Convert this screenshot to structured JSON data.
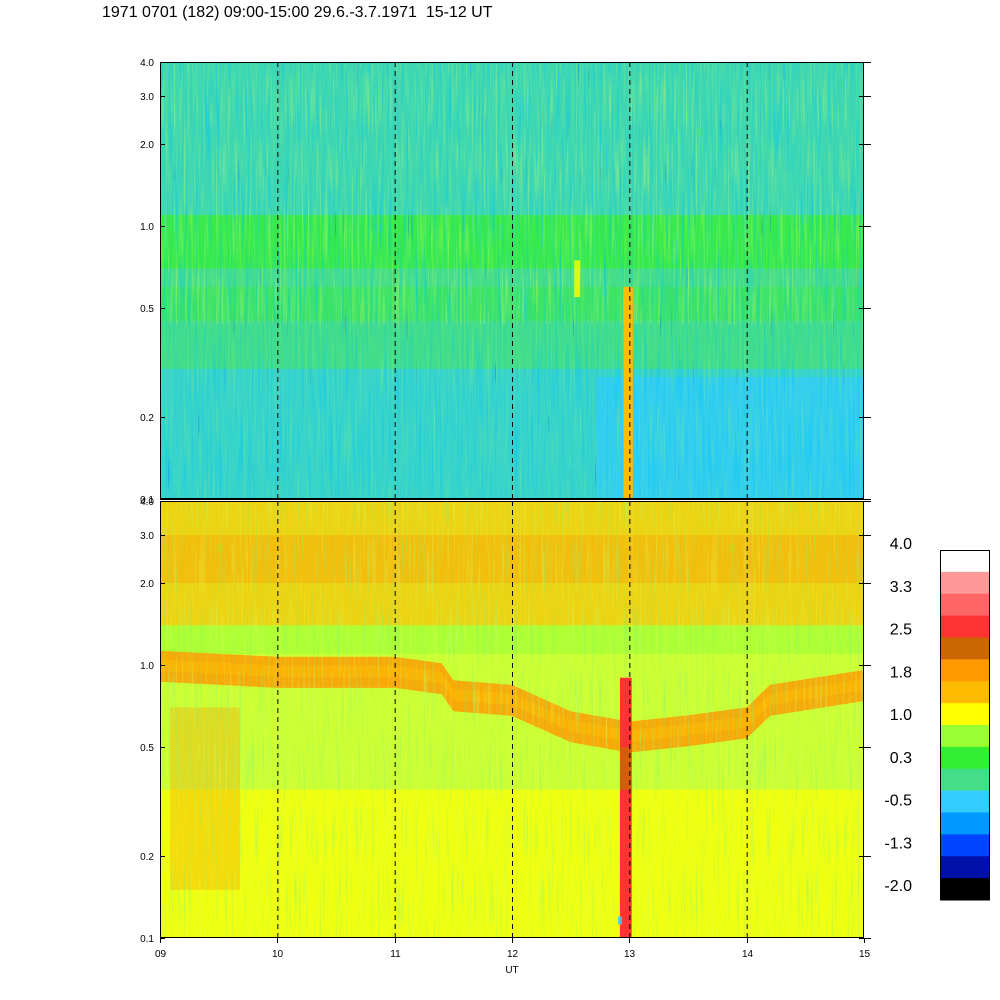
{
  "title": "1971 0701 (182) 09:00-15:00 29.6.-3.7.1971  15-12 UT",
  "chart_data": {
    "type": "heatmap",
    "xlabel": "UT",
    "x_range": [
      9,
      15
    ],
    "x_ticks": [
      "09",
      "10",
      "11",
      "12",
      "13",
      "14",
      "15"
    ],
    "y_scale": "log",
    "y_range": [
      0.1,
      4.0
    ],
    "y_ticks": [
      "0.1",
      "0.2",
      "0.5",
      "1.0",
      "2.0",
      "3.0",
      "4.0"
    ],
    "dashed_hour_lines": [
      10,
      11,
      12,
      13,
      14
    ],
    "panels": [
      {
        "id": "upper",
        "dominant_levels": [
          "-0.5",
          "0.3",
          "1.0"
        ],
        "features": [
          {
            "desc": "enhanced band",
            "y_range": [
              0.7,
              1.1
            ],
            "level": "0.3"
          },
          {
            "desc": "spike",
            "x_range": [
              12.95,
              13.03
            ],
            "y_range": [
              0.1,
              0.6
            ],
            "level": "1.8"
          }
        ]
      },
      {
        "id": "lower",
        "dominant_levels": [
          "1.0",
          "1.8",
          "2.5"
        ],
        "band_center_y": [
          {
            "x": 9.0,
            "y": 1.0
          },
          {
            "x": 10.0,
            "y": 0.95
          },
          {
            "x": 11.0,
            "y": 0.95
          },
          {
            "x": 11.4,
            "y": 0.9
          },
          {
            "x": 11.5,
            "y": 0.78
          },
          {
            "x": 12.0,
            "y": 0.75
          },
          {
            "x": 12.5,
            "y": 0.6
          },
          {
            "x": 13.0,
            "y": 0.55
          },
          {
            "x": 13.5,
            "y": 0.58
          },
          {
            "x": 14.0,
            "y": 0.62
          },
          {
            "x": 14.2,
            "y": 0.75
          },
          {
            "x": 15.0,
            "y": 0.85
          }
        ],
        "features": [
          {
            "desc": "spike",
            "x_range": [
              12.92,
              13.02
            ],
            "y_range": [
              0.1,
              0.9
            ],
            "level": "2.5"
          }
        ]
      }
    ],
    "colorbar": {
      "labels": [
        "4.0",
        "3.3",
        "2.5",
        "1.8",
        "1.0",
        "0.3",
        "-0.5",
        "-1.3",
        "-2.0"
      ],
      "colors": [
        "#ffffff",
        "#ff9999",
        "#ff6666",
        "#ff3333",
        "#cc6600",
        "#ff9900",
        "#ffbb00",
        "#ffff00",
        "#99ff33",
        "#33ee33",
        "#44dd88",
        "#33ccff",
        "#0099ff",
        "#0044ff",
        "#0011aa",
        "#000000"
      ]
    }
  }
}
